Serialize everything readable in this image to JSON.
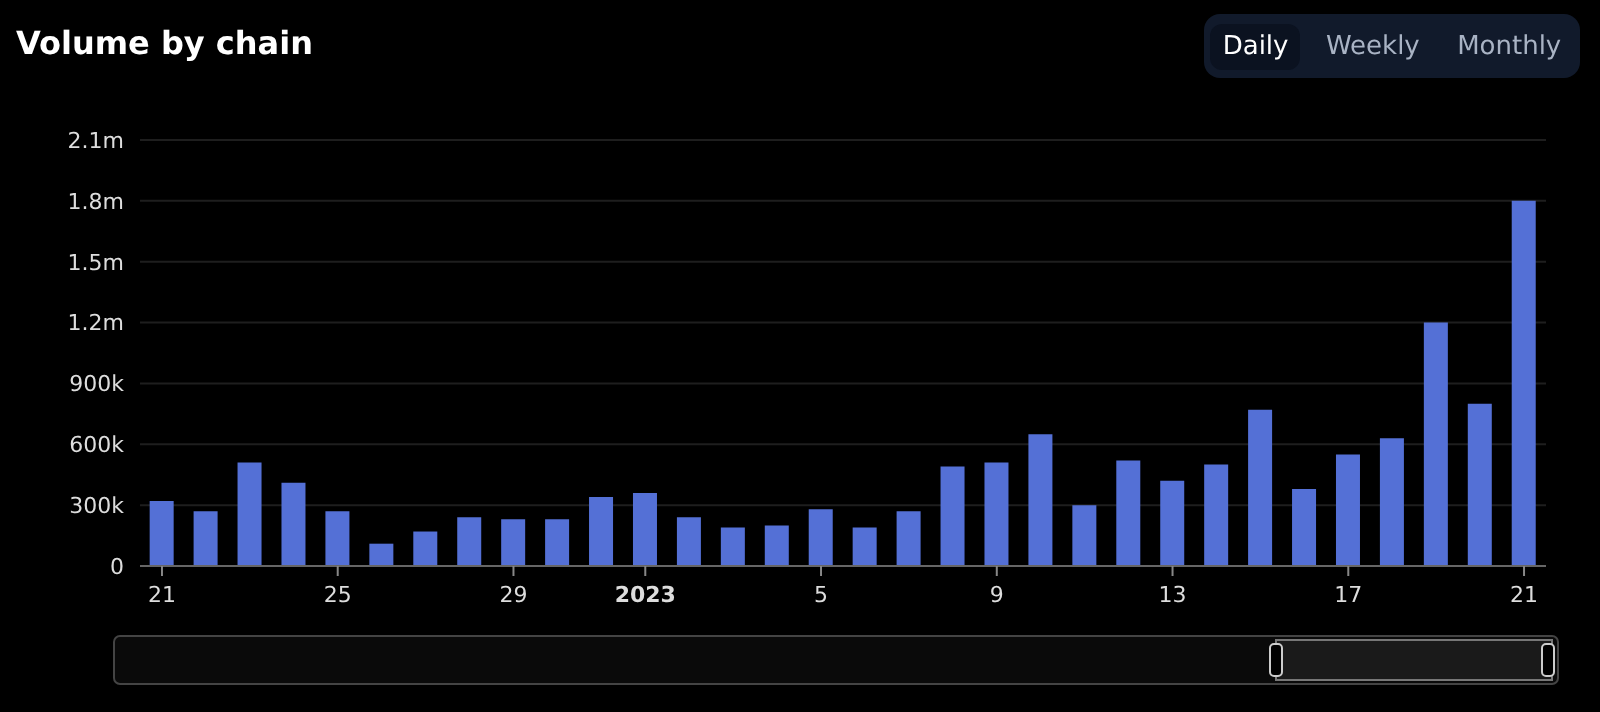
{
  "chart_data": {
    "type": "bar",
    "title": "Volume by chain",
    "annotations": [
      "Daily",
      "Weekly",
      "Monthly"
    ],
    "categories": [
      "21",
      null,
      null,
      null,
      "25",
      null,
      null,
      null,
      "29",
      null,
      null,
      "2023",
      null,
      null,
      null,
      "5",
      null,
      null,
      null,
      "9",
      null,
      null,
      null,
      "13",
      null,
      null,
      null,
      "17",
      null,
      null,
      null,
      "21"
    ],
    "series": [
      {
        "color": "#5470d6",
        "values": [
          320000,
          270000,
          510000,
          410000,
          270000,
          110000,
          170000,
          240000,
          230000,
          230000,
          340000,
          360000,
          240000,
          190000,
          200000,
          280000,
          190000,
          270000,
          490000,
          510000,
          650000,
          300000,
          520000,
          420000,
          500000,
          770000,
          380000,
          550000,
          630000,
          1200000,
          800000,
          1800000
        ]
      }
    ],
    "ylim": [
      0,
      2100000
    ],
    "yticks": [
      0,
      {
        "value": 300000,
        "label": "300k"
      },
      {
        "value": 600000,
        "label": "600k"
      },
      {
        "value": 900000,
        "label": "900k"
      },
      {
        "value": 1200000,
        "label": "1.2m"
      },
      {
        "value": 1500000,
        "label": "1.5m"
      },
      {
        "value": 1800000,
        "label": "1.8m"
      },
      {
        "value": 2100000,
        "label": "2.1m"
      }
    ],
    "grid": "y"
  }
}
